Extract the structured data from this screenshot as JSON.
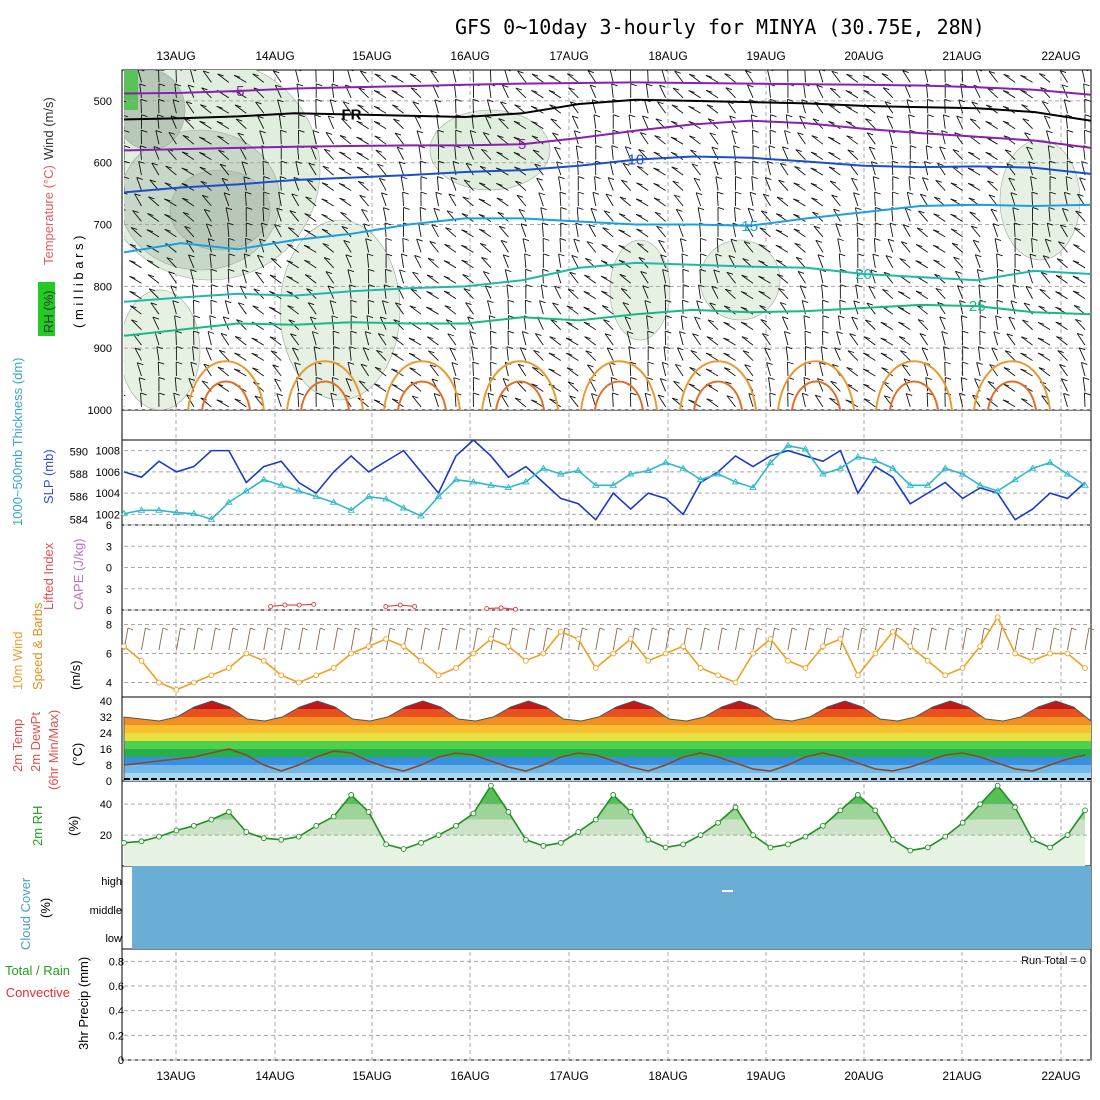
{
  "title": "GFS 0~10day 3-hourly for MINYA (30.75E, 28N)",
  "dates": [
    "13AUG",
    "14AUG",
    "15AUG",
    "16AUG",
    "17AUG",
    "18AUG",
    "19AUG",
    "20AUG",
    "21AUG",
    "22AUG"
  ],
  "colors": {
    "temp_purple": "#8a1fb0",
    "temp_blue": "#1a4fc8",
    "temp_lightblue": "#1aa0e0",
    "temp_teal": "#20b8a8",
    "temp_green": "#18b888",
    "temp_orange": "#e89a30",
    "temp_darkorange": "#e07028",
    "slp_line": "#1a3ac8",
    "thk_line": "#30b8c8",
    "li_line": "#e04040",
    "wind_line": "#f0a020",
    "rh_line": "#209020",
    "cloud_fill": "#6aaed6",
    "rh_fill": "#cde8c8"
  },
  "labels": {
    "wind_axis": "Wind (m/s)",
    "temp_axis": "Temperature (°C)",
    "rh_axis": "RH (%)",
    "millibars": "( m i l l i b a r s )",
    "thickness": "1000~500mb Thickness (dm)",
    "slp": "SLP (mb)",
    "lifted": "Lifted Index",
    "cape": "CAPE (J/kg)",
    "wind10": "10m Wind",
    "speed_barbs": "Speed & Barbs",
    "ms": "(m/s)",
    "temp2m": "2m Temp",
    "dew2m": "2m DewPt",
    "minmax": "(6hr Min/Max)",
    "degc": "(°C)",
    "rh2m": "2m RH",
    "pct": "(%)",
    "cloud": "Cloud Cover",
    "cloud_pct": "(%)",
    "total_rain": "Total / Rain",
    "convective": "Convective",
    "precip": "3hr Precip (mm)",
    "run_total": "Run Total = 0",
    "cloud_high": "high",
    "cloud_middle": "middle",
    "cloud_low": "low"
  },
  "chart_data": [
    {
      "panel": "upper-air",
      "type": "contour",
      "y_axis": "pressure (mb)",
      "y_ticks": [
        500,
        600,
        700,
        800,
        900,
        1000
      ],
      "ylim": [
        450,
        1000
      ],
      "temperature_contours": [
        {
          "level": "-5",
          "color": "temp_purple",
          "pressure": [
            488,
            487,
            484,
            480,
            478,
            476,
            474,
            472,
            471,
            470,
            471,
            472,
            473,
            474,
            475,
            478,
            482,
            490
          ]
        },
        {
          "level": "FR",
          "color": "black",
          "pressure": [
            530,
            528,
            525,
            520,
            522,
            524,
            526,
            520,
            505,
            498,
            500,
            502,
            504,
            508,
            510,
            512,
            518,
            532
          ]
        },
        {
          "level": "5",
          "color": "temp_purple",
          "pressure": [
            580,
            578,
            576,
            574,
            573,
            572,
            572,
            570,
            560,
            548,
            538,
            532,
            536,
            545,
            552,
            558,
            564,
            576
          ]
        },
        {
          "level": "10",
          "color": "temp_blue",
          "pressure": [
            648,
            640,
            635,
            628,
            624,
            620,
            615,
            612,
            605,
            595,
            590,
            592,
            598,
            605,
            607,
            606,
            608,
            618
          ]
        },
        {
          "level": "15",
          "color": "temp_lightblue",
          "pressure": [
            745,
            730,
            740,
            725,
            715,
            700,
            690,
            690,
            695,
            700,
            700,
            702,
            690,
            680,
            670,
            668,
            670,
            668
          ]
        },
        {
          "level": "20",
          "color": "temp_teal",
          "pressure": [
            825,
            818,
            812,
            815,
            808,
            803,
            800,
            790,
            770,
            762,
            765,
            768,
            770,
            780,
            785,
            790,
            775,
            780
          ]
        },
        {
          "level": "25",
          "color": "temp_green",
          "pressure": [
            880,
            870,
            860,
            862,
            858,
            860,
            860,
            850,
            855,
            845,
            838,
            842,
            840,
            835,
            830,
            832,
            842,
            845
          ]
        }
      ],
      "rh_shading_levels_pct": [
        30,
        50,
        70,
        90
      ]
    },
    {
      "panel": "slp-thickness",
      "type": "line",
      "series": [
        {
          "name": "SLP (mb)",
          "axis": "right",
          "ylim": [
            1001,
            1009
          ],
          "values": [
            1006,
            1005.5,
            1007,
            1006,
            1006.5,
            1008,
            1008,
            1005,
            1006.5,
            1007,
            1005,
            1004,
            1006,
            1007.5,
            1006,
            1007,
            1008,
            1006,
            1004,
            1007.5,
            1009,
            1007.5,
            1005.5,
            1006.5,
            1005,
            1003.5,
            1003,
            1001.5,
            1004,
            1002.5,
            1004,
            1003.5,
            1002,
            1005,
            1006,
            1007.5,
            1006.5,
            1007.5,
            1008,
            1007.5,
            1007,
            1008,
            1004,
            1006.5,
            1005.5,
            1003,
            1004,
            1005,
            1003.5,
            1004.5,
            1004,
            1001.5,
            1002.5,
            1004,
            1003.5,
            1005
          ]
        },
        {
          "name": "1000~500mb Thickness (dm)",
          "axis": "left",
          "ylim": [
            583.5,
            591
          ],
          "values": [
            584.5,
            584.8,
            584.8,
            584.6,
            584.5,
            584.0,
            585.5,
            586.5,
            587.5,
            587.0,
            586.5,
            586.0,
            585.5,
            584.8,
            586.0,
            585.8,
            585.0,
            584.3,
            586.0,
            587.5,
            587.3,
            587.0,
            586.8,
            587.3,
            588.5,
            588.0,
            588.3,
            587.0,
            587.0,
            588.0,
            588.3,
            589.0,
            588.5,
            587.5,
            588.0,
            587.3,
            586.8,
            589.0,
            590.5,
            590.2,
            588.0,
            588.5,
            589.5,
            589.2,
            588.5,
            587.0,
            587.0,
            588.5,
            588.0,
            587.0,
            586.5,
            587.5,
            588.5,
            589.0,
            588.0,
            587.0
          ]
        }
      ],
      "left_ticks": [
        584,
        586,
        588,
        590
      ],
      "right_ticks": [
        1002,
        1004,
        1006,
        1008
      ]
    },
    {
      "panel": "lifted-cape",
      "type": "line",
      "series": [
        {
          "name": "Lifted Index",
          "values": [
            null,
            null,
            null,
            null,
            null,
            null,
            5.5,
            5.3,
            5.3,
            5.2,
            null,
            null,
            null,
            null,
            5.5,
            5.3,
            5.5,
            null,
            null,
            null,
            null,
            5.8,
            5.7,
            5.9,
            null
          ]
        }
      ],
      "yticks": [
        6,
        3,
        0,
        -3,
        -6
      ],
      "ylim": [
        -6,
        6
      ]
    },
    {
      "panel": "wind10m",
      "type": "line",
      "series": [
        {
          "name": "10m Wind Speed (m/s)",
          "values": [
            6.5,
            5.5,
            4.0,
            3.5,
            4.0,
            4.5,
            5.0,
            6.0,
            5.5,
            4.5,
            4.0,
            4.5,
            5.0,
            6.0,
            6.5,
            7.0,
            6.5,
            5.5,
            4.5,
            5.0,
            6.0,
            7.0,
            6.5,
            5.5,
            6.0,
            7.5,
            7.0,
            5.0,
            6.0,
            7.0,
            5.5,
            6.0,
            6.5,
            5.0,
            4.5,
            4.0,
            6.0,
            7.0,
            5.5,
            5.0,
            6.5,
            7.0,
            4.5,
            6.0,
            7.5,
            6.5,
            5.5,
            4.5,
            5.0,
            6.5,
            8.5,
            6.0,
            5.5,
            6.0,
            6.0,
            5.0
          ]
        }
      ],
      "yticks": [
        4,
        6,
        8
      ],
      "ylim": [
        3,
        9
      ]
    },
    {
      "panel": "temp-dewpoint",
      "type": "area",
      "series": [
        {
          "name": "2m Temp (°C)",
          "values": [
            32,
            31,
            30,
            32,
            37,
            40,
            37,
            31,
            30,
            32,
            37,
            40,
            37,
            31,
            30,
            32,
            37,
            40,
            37,
            31,
            30,
            32,
            37,
            40,
            37,
            31,
            30,
            32,
            37,
            40,
            37,
            31,
            30,
            32,
            37,
            40,
            37,
            31,
            30,
            32,
            37,
            40,
            37,
            31,
            30,
            32,
            37,
            40,
            37,
            31,
            30,
            32,
            37,
            40,
            37,
            30
          ]
        },
        {
          "name": "2m DewPt (°C)",
          "values": [
            8,
            9,
            10,
            11,
            12,
            14,
            16,
            13,
            8,
            5,
            8,
            12,
            15,
            14,
            10,
            7,
            5,
            8,
            12,
            14,
            13,
            10,
            7,
            5,
            8,
            12,
            14,
            13,
            10,
            7,
            5,
            8,
            12,
            14,
            12,
            9,
            6,
            5,
            8,
            12,
            14,
            12,
            9,
            6,
            5,
            7,
            10,
            13,
            14,
            12,
            9,
            6,
            5,
            8,
            11,
            13
          ]
        }
      ],
      "yticks": [
        0,
        8,
        16,
        24,
        32,
        40
      ],
      "ylim": [
        0,
        42
      ]
    },
    {
      "panel": "rh2m",
      "type": "area",
      "series": [
        {
          "name": "2m RH (%)",
          "values": [
            15,
            16,
            19,
            23,
            26,
            30,
            35,
            22,
            18,
            17,
            19,
            26,
            32,
            46,
            35,
            14,
            11,
            15,
            20,
            26,
            34,
            52,
            35,
            17,
            13,
            15,
            22,
            30,
            46,
            35,
            17,
            12,
            14,
            20,
            28,
            38,
            20,
            12,
            14,
            19,
            26,
            36,
            46,
            36,
            17,
            10,
            12,
            19,
            28,
            40,
            52,
            38,
            17,
            12,
            20,
            36
          ]
        }
      ],
      "yticks": [
        20,
        40
      ],
      "ylim": [
        0,
        55
      ]
    },
    {
      "panel": "cloud-cover",
      "type": "heatmap",
      "levels": [
        "high",
        "middle",
        "low"
      ],
      "value_pct": 0
    },
    {
      "panel": "precip",
      "type": "bar",
      "yticks": [
        0,
        0.2,
        0.4,
        0.6,
        0.8
      ],
      "ylim": [
        0,
        0.9
      ],
      "values": [],
      "run_total": 0
    }
  ]
}
